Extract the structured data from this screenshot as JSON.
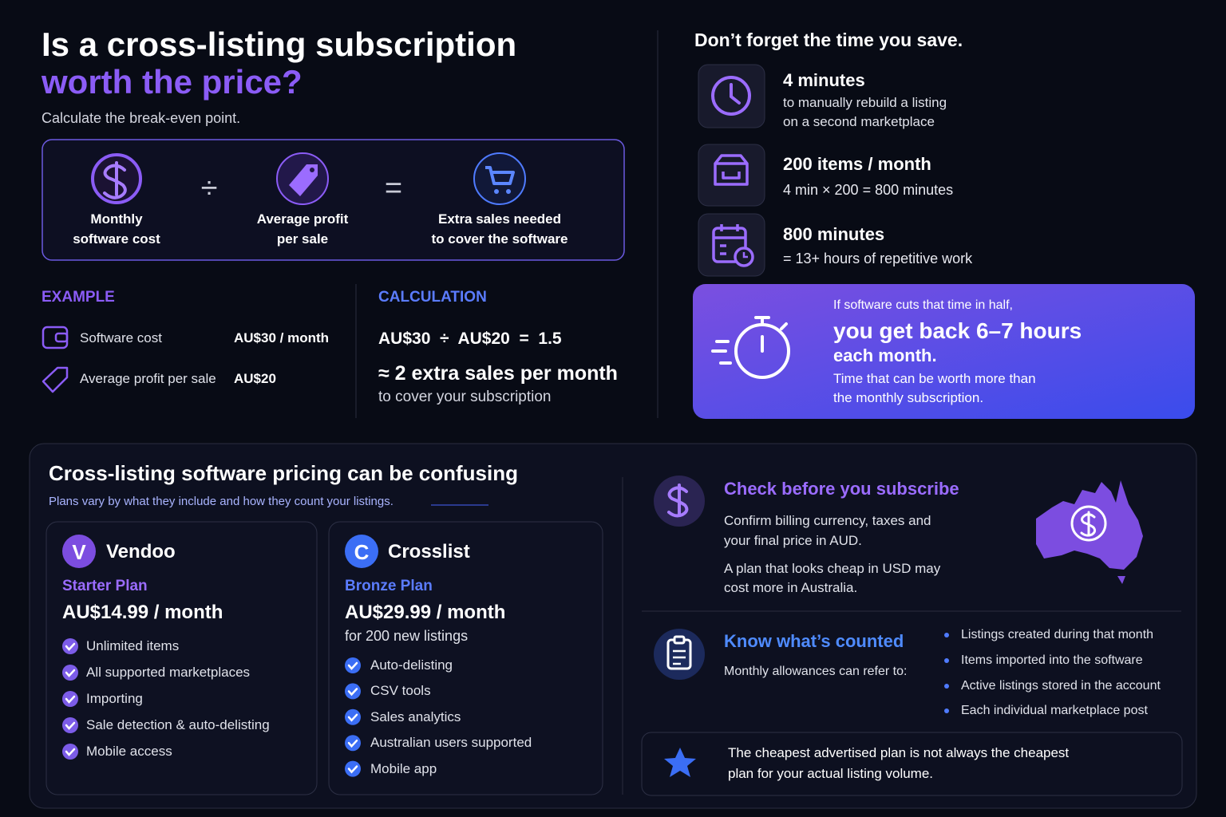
{
  "header": {
    "title_line1": "Is a cross-listing subscription",
    "title_line2": "worth the price?",
    "subtitle": "Calculate the break-even point."
  },
  "formula": {
    "items": [
      {
        "line1": "Monthly",
        "line2": "software cost"
      },
      {
        "line1": "Average profit",
        "line2": "per sale"
      },
      {
        "line1": "Extra sales needed",
        "line2": "to cover the software"
      }
    ],
    "operators": [
      "÷",
      "="
    ]
  },
  "example": {
    "heading": "EXAMPLE",
    "rows": [
      {
        "label": "Software cost",
        "value": "AU$30 / month"
      },
      {
        "label": "Average profit per sale",
        "value": "AU$20"
      }
    ]
  },
  "calculation": {
    "heading": "CALCULATION",
    "equation": "AU$30  ÷  AU$20  =  1.5",
    "result": "≈ 2 extra sales per month",
    "note": "to cover your subscription"
  },
  "time": {
    "heading": "Don’t forget the time you save.",
    "items": [
      {
        "title": "4 minutes",
        "lines": [
          "to manually rebuild a listing",
          "on a second marketplace"
        ]
      },
      {
        "title": "200 items / month",
        "lines": [
          "4 min × 200 = 800 minutes"
        ]
      },
      {
        "title": "800 minutes",
        "lines": [
          "= 13+ hours of repetitive work"
        ]
      }
    ]
  },
  "callout": {
    "intro": "If software cuts that time in half,",
    "headline": "you get back 6–7 hours",
    "headline2": "each month.",
    "body": [
      "Time that can be worth more than",
      "the monthly subscription."
    ]
  },
  "pricing": {
    "title": "Cross-listing software pricing can be confusing",
    "subtitle": "Plans vary by what they include and how they count your listings.",
    "plans": [
      {
        "logo": "V",
        "brand": "Vendoo",
        "plan": "Starter Plan",
        "price": "AU$14.99 / month",
        "features": [
          "Unlimited items",
          "All supported marketplaces",
          "Importing",
          "Sale detection & auto-delisting",
          "Mobile access"
        ]
      },
      {
        "logo": "C",
        "brand": "Crosslist",
        "plan": "Bronze Plan",
        "price": "AU$29.99 / month",
        "note": "for 200 new listings",
        "features": [
          "Auto-delisting",
          "CSV tools",
          "Sales analytics",
          "Australian users supported",
          "Mobile app"
        ]
      }
    ]
  },
  "check": {
    "title": "Check before you subscribe",
    "lines": [
      "Confirm billing currency, taxes and",
      "your final price in AUD.",
      "A plan that looks cheap in USD may",
      "cost more in Australia."
    ]
  },
  "counted": {
    "title": "Know what’s counted",
    "intro": "Monthly allowances can refer to:",
    "items": [
      "Listings created during that month",
      "Items imported into the software",
      "Active listings stored in the account",
      "Each individual marketplace post"
    ]
  },
  "tip": {
    "lines": [
      "The cheapest advertised plan is not always the cheapest",
      "plan for your actual listing volume."
    ]
  }
}
